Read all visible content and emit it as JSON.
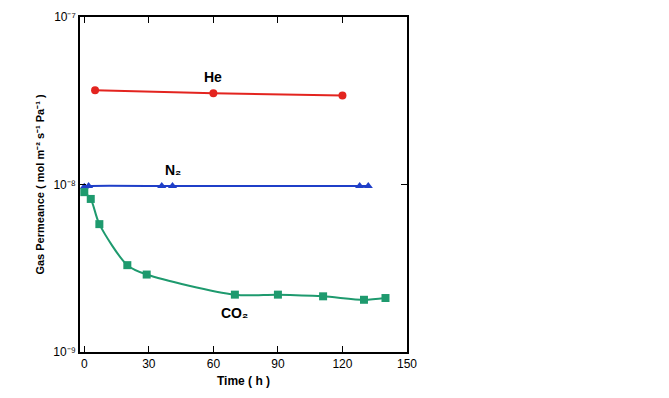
{
  "chart_data": {
    "type": "line",
    "x_label": "Time ( h )",
    "y_label": "Gas Permeance ( mol m⁻² s⁻¹ Pa⁻¹ )",
    "log": "y",
    "xlim": [
      -2,
      150
    ],
    "xticks": [
      0,
      30,
      60,
      90,
      120,
      150
    ],
    "ylim": [
      1e-09,
      1e-07
    ],
    "yticks": [
      {
        "value": 1e-09,
        "label": "10⁻⁹"
      },
      {
        "value": 1e-08,
        "label": "10⁻⁸"
      },
      {
        "value": 1e-07,
        "label": "10⁻⁷"
      }
    ],
    "grid": false,
    "series": [
      {
        "name": "He",
        "color": "#e3241f",
        "marker": "circle",
        "line_style": "solid",
        "x": [
          5,
          60,
          120
        ],
        "values": [
          3.65e-08,
          3.5e-08,
          3.4e-08
        ]
      },
      {
        "name": "N₂",
        "color": "#1f3fc8",
        "marker": "triangle-up",
        "line_style": "solid",
        "x": [
          0,
          2,
          36,
          41,
          128,
          132
        ],
        "values": [
          9.7e-09,
          9.8e-09,
          9.8e-09,
          9.8e-09,
          9.8e-09,
          9.8e-09
        ]
      },
      {
        "name": "CO₂",
        "color": "#1e9a6e",
        "marker": "square",
        "line_style": "solid",
        "x": [
          0,
          3,
          7,
          20,
          29,
          70,
          90,
          111,
          130,
          140
        ],
        "values": [
          9e-09,
          8.2e-09,
          5.8e-09,
          3.3e-09,
          2.9e-09,
          2.2e-09,
          2.2e-09,
          2.15e-09,
          2.05e-09,
          2.1e-09
        ]
      }
    ]
  }
}
